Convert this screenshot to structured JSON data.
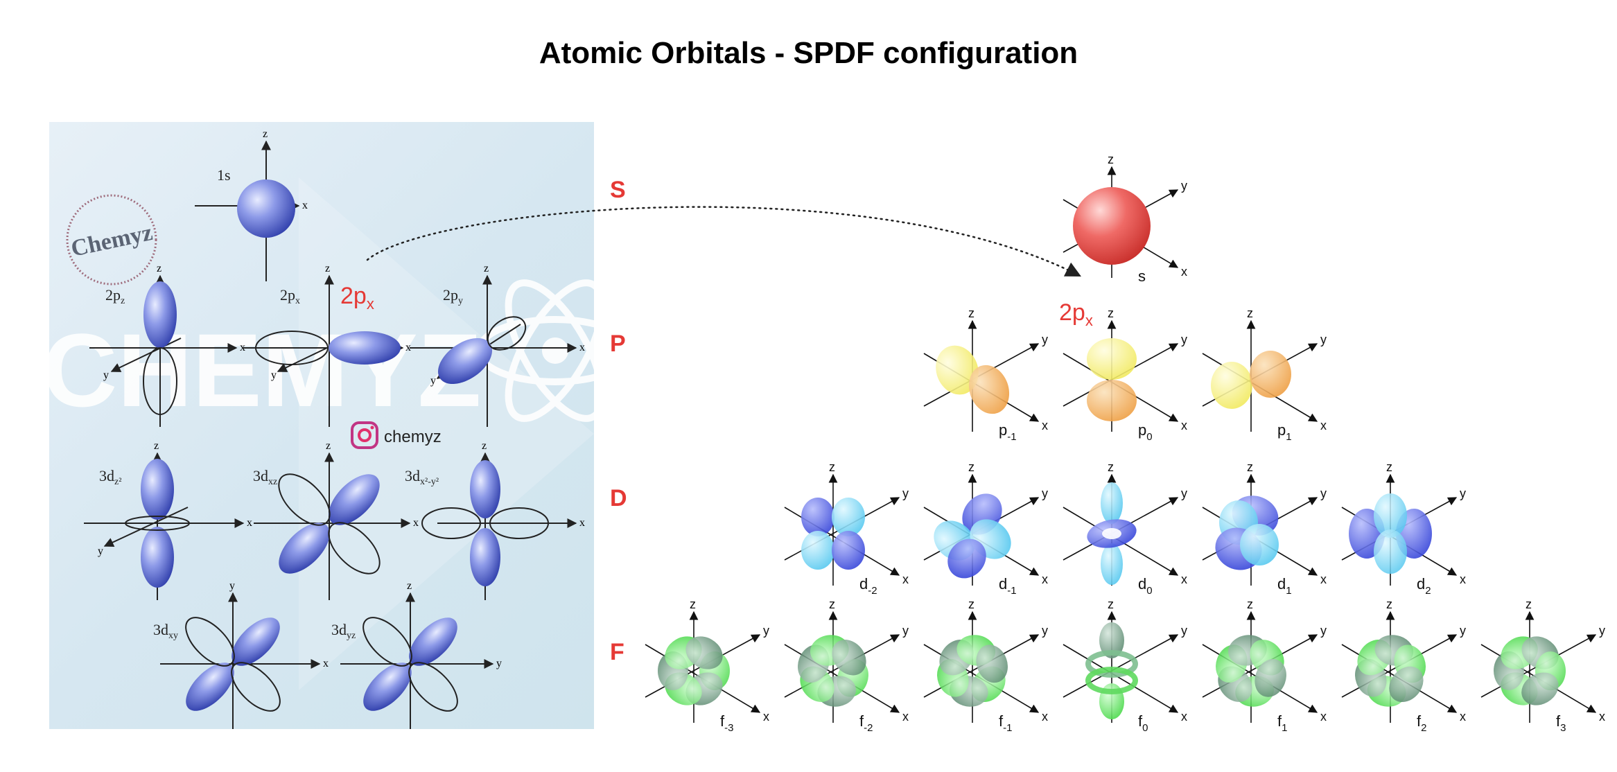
{
  "title": "Atomic Orbitals - SPDF configuration",
  "colors": {
    "s": "#e53935",
    "p_yellow": "#f7f06a",
    "p_orange": "#f2a64a",
    "d_blue": "#4a5be8",
    "d_cyan": "#6fd3f3",
    "f_green": "#5ee05e",
    "f_gray": "#6f9a80",
    "accent_red": "#e53935",
    "panel_orbital": "#4a5fcf"
  },
  "left_panel": {
    "logo_text": "Chemyz",
    "watermark": "CHEMYZ",
    "instagram_handle": "chemyz",
    "highlight_label": "2p",
    "highlight_sub": "x",
    "orbital_labels": [
      {
        "main": "1s",
        "sub": ""
      },
      {
        "main": "2p",
        "sub": "z"
      },
      {
        "main": "2p",
        "sub": "x"
      },
      {
        "main": "2p",
        "sub": "y"
      },
      {
        "main": "3d",
        "sub": "z²"
      },
      {
        "main": "3d",
        "sub": "xz"
      },
      {
        "main": "3d",
        "sub": "x²-y²"
      },
      {
        "main": "3d",
        "sub": "xy"
      },
      {
        "main": "3d",
        "sub": "yz"
      }
    ]
  },
  "rows": [
    {
      "letter": "S",
      "orbitals": [
        {
          "name": "s",
          "sub": ""
        }
      ]
    },
    {
      "letter": "P",
      "orbitals": [
        {
          "name": "p",
          "sub": "-1"
        },
        {
          "name": "p",
          "sub": "0"
        },
        {
          "name": "p",
          "sub": "1"
        }
      ]
    },
    {
      "letter": "D",
      "orbitals": [
        {
          "name": "d",
          "sub": "-2"
        },
        {
          "name": "d",
          "sub": "-1"
        },
        {
          "name": "d",
          "sub": "0"
        },
        {
          "name": "d",
          "sub": "1"
        },
        {
          "name": "d",
          "sub": "2"
        }
      ]
    },
    {
      "letter": "F",
      "orbitals": [
        {
          "name": "f",
          "sub": "-3"
        },
        {
          "name": "f",
          "sub": "-2"
        },
        {
          "name": "f",
          "sub": "-1"
        },
        {
          "name": "f",
          "sub": "0"
        },
        {
          "name": "f",
          "sub": "1"
        },
        {
          "name": "f",
          "sub": "2"
        },
        {
          "name": "f",
          "sub": "3"
        }
      ]
    }
  ],
  "right_highlight": {
    "label": "2p",
    "sub": "x"
  },
  "axis_labels": {
    "x": "x",
    "y": "y",
    "z": "z"
  }
}
